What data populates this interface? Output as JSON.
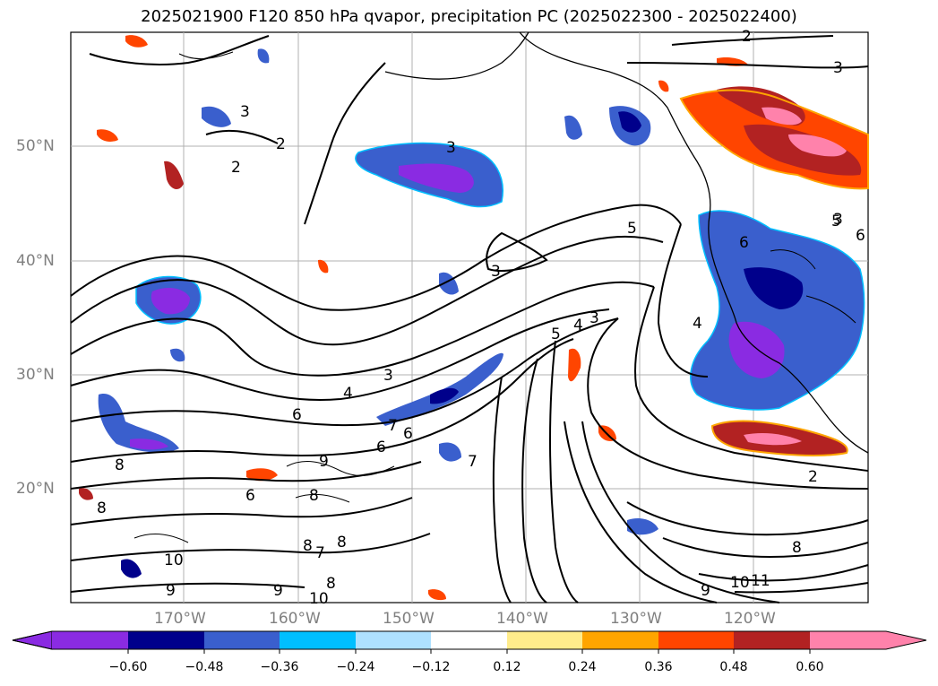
{
  "title": "2025021900 F120 850 hPa qvapor, precipitation PC (2025022300 - 2025022400)",
  "map": {
    "lat_labels": [
      "50°N",
      "40°N",
      "30°N",
      "20°N"
    ],
    "lon_labels": [
      "170°W",
      "160°W",
      "150°W",
      "140°W",
      "130°W",
      "120°W"
    ],
    "contour_labels": [
      "2",
      "3",
      "2",
      "2",
      "3",
      "3",
      "5",
      "3",
      "4",
      "3",
      "5",
      "4",
      "3",
      "4",
      "3",
      "6",
      "7",
      "6",
      "6",
      "8",
      "9",
      "8",
      "6",
      "7",
      "8",
      "8",
      "7",
      "8",
      "10",
      "9",
      "9",
      "10",
      "8",
      "9",
      "10",
      "11",
      "2",
      "8",
      "6",
      "6",
      "5"
    ]
  },
  "colorbar": {
    "colors": [
      "#8a2be2",
      "#00008b",
      "#3a5fcd",
      "#00bfff",
      "#aee1ff",
      "#ffffff",
      "#ffec8b",
      "#ffa500",
      "#ff4500",
      "#b22222",
      "#ff82ab"
    ],
    "tick_labels": [
      "−0.60",
      "−0.48",
      "−0.36",
      "−0.24",
      "−0.12",
      "0.12",
      "0.24",
      "0.36",
      "0.48",
      "0.60"
    ]
  }
}
